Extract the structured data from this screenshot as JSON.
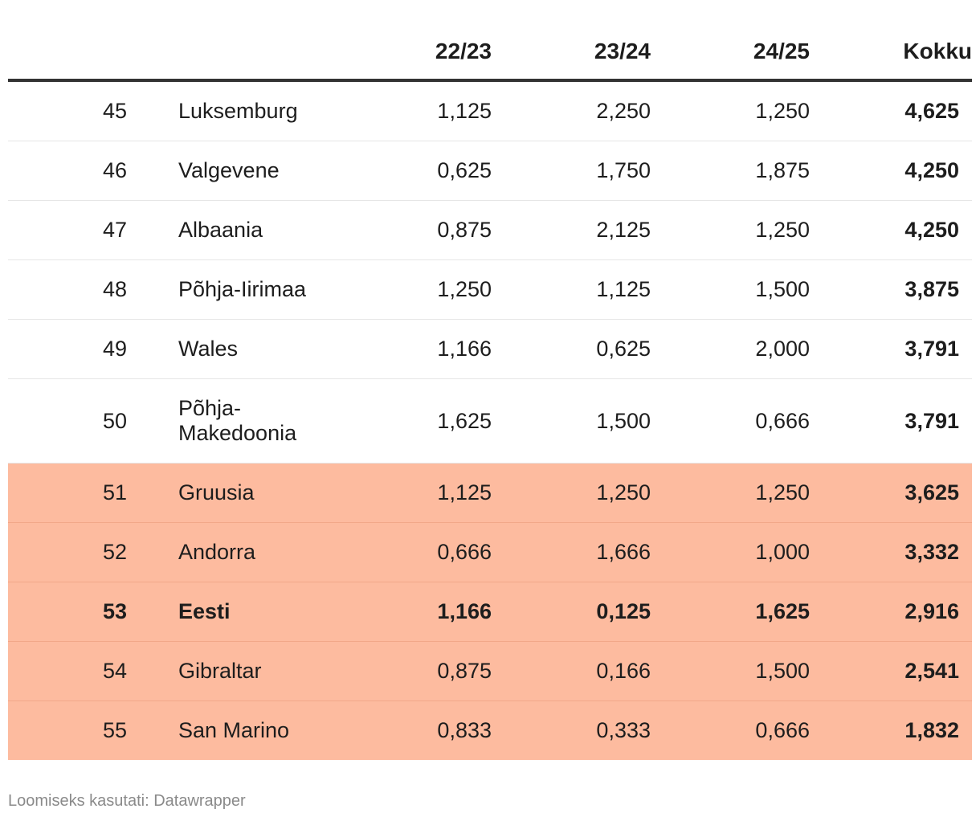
{
  "chart_data": {
    "type": "table",
    "columns": [
      "",
      "",
      "22/23",
      "23/24",
      "24/25",
      "Kokku"
    ],
    "rows": [
      {
        "rank": "45",
        "country": "Luksemburg",
        "s2223": "1,125",
        "s2324": "2,250",
        "s2425": "1,250",
        "total": "4,625",
        "highlight": false,
        "bold": false
      },
      {
        "rank": "46",
        "country": "Valgevene",
        "s2223": "0,625",
        "s2324": "1,750",
        "s2425": "1,875",
        "total": "4,250",
        "highlight": false,
        "bold": false
      },
      {
        "rank": "47",
        "country": "Albaania",
        "s2223": "0,875",
        "s2324": "2,125",
        "s2425": "1,250",
        "total": "4,250",
        "highlight": false,
        "bold": false
      },
      {
        "rank": "48",
        "country": "Põhja-Iirimaa",
        "s2223": "1,250",
        "s2324": "1,125",
        "s2425": "1,500",
        "total": "3,875",
        "highlight": false,
        "bold": false
      },
      {
        "rank": "49",
        "country": "Wales",
        "s2223": "1,166",
        "s2324": "0,625",
        "s2425": "2,000",
        "total": "3,791",
        "highlight": false,
        "bold": false
      },
      {
        "rank": "50",
        "country": "Põhja-Makedoonia",
        "s2223": "1,625",
        "s2324": "1,500",
        "s2425": "0,666",
        "total": "3,791",
        "highlight": false,
        "bold": false
      },
      {
        "rank": "51",
        "country": "Gruusia",
        "s2223": "1,125",
        "s2324": "1,250",
        "s2425": "1,250",
        "total": "3,625",
        "highlight": true,
        "bold": false
      },
      {
        "rank": "52",
        "country": "Andorra",
        "s2223": "0,666",
        "s2324": "1,666",
        "s2425": "1,000",
        "total": "3,332",
        "highlight": true,
        "bold": false
      },
      {
        "rank": "53",
        "country": "Eesti",
        "s2223": "1,166",
        "s2324": "0,125",
        "s2425": "1,625",
        "total": "2,916",
        "highlight": true,
        "bold": true
      },
      {
        "rank": "54",
        "country": "Gibraltar",
        "s2223": "0,875",
        "s2324": "0,166",
        "s2425": "1,500",
        "total": "2,541",
        "highlight": true,
        "bold": false
      },
      {
        "rank": "55",
        "country": "San Marino",
        "s2223": "0,833",
        "s2324": "0,333",
        "s2425": "0,666",
        "total": "1,832",
        "highlight": true,
        "bold": false
      }
    ],
    "highlight_color": "#fdbb9f"
  },
  "footer": {
    "credit": "Loomiseks kasutati: Datawrapper"
  }
}
